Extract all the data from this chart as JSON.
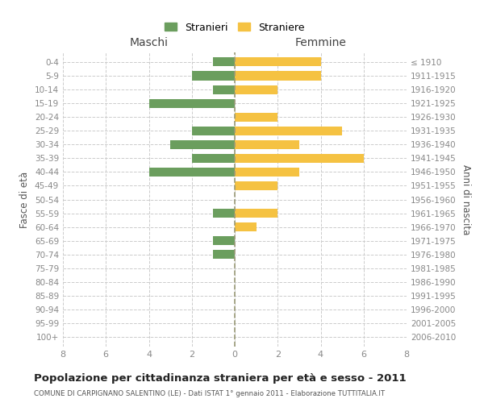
{
  "age_groups": [
    "0-4",
    "5-9",
    "10-14",
    "15-19",
    "20-24",
    "25-29",
    "30-34",
    "35-39",
    "40-44",
    "45-49",
    "50-54",
    "55-59",
    "60-64",
    "65-69",
    "70-74",
    "75-79",
    "80-84",
    "85-89",
    "90-94",
    "95-99",
    "100+"
  ],
  "birth_years": [
    "2006-2010",
    "2001-2005",
    "1996-2000",
    "1991-1995",
    "1986-1990",
    "1981-1985",
    "1976-1980",
    "1971-1975",
    "1966-1970",
    "1961-1965",
    "1956-1960",
    "1951-1955",
    "1946-1950",
    "1941-1945",
    "1936-1940",
    "1931-1935",
    "1926-1930",
    "1921-1925",
    "1916-1920",
    "1911-1915",
    "≤ 1910"
  ],
  "maschi": [
    1,
    2,
    1,
    4,
    0,
    2,
    3,
    2,
    4,
    0,
    0,
    1,
    0,
    1,
    1,
    0,
    0,
    0,
    0,
    0,
    0
  ],
  "femmine": [
    4,
    4,
    2,
    0,
    2,
    5,
    3,
    6,
    3,
    2,
    0,
    2,
    1,
    0,
    0,
    0,
    0,
    0,
    0,
    0,
    0
  ],
  "color_maschi": "#6b9e5e",
  "color_femmine": "#f5c242",
  "title": "Popolazione per cittadinanza straniera per età e sesso - 2011",
  "subtitle": "COMUNE DI CARPIGNANO SALENTINO (LE) - Dati ISTAT 1° gennaio 2011 - Elaborazione TUTTITALIA.IT",
  "xlabel_left": "Maschi",
  "xlabel_right": "Femmine",
  "ylabel_left": "Fasce di età",
  "ylabel_right": "Anni di nascita",
  "legend_maschi": "Stranieri",
  "legend_femmine": "Straniere",
  "xlim": 8,
  "background_color": "#ffffff",
  "grid_color": "#cccccc"
}
